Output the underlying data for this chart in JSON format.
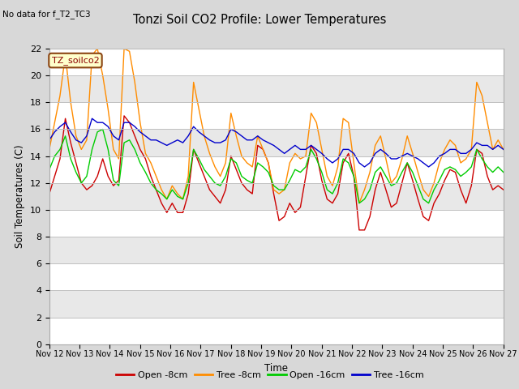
{
  "title": "Tonzi Soil CO2 Profile: Lower Temperatures",
  "no_data_text": "No data for f_T2_TC3",
  "ylabel": "Soil Temperatures (C)",
  "xlabel": "Time",
  "legend_label": "TZ_soilco2",
  "ylim": [
    0,
    22
  ],
  "yticks": [
    0,
    2,
    4,
    6,
    8,
    10,
    12,
    14,
    16,
    18,
    20,
    22
  ],
  "xtick_labels": [
    "Nov 12",
    "Nov 13",
    "Nov 14",
    "Nov 15",
    "Nov 16",
    "Nov 17",
    "Nov 18",
    "Nov 19",
    "Nov 20",
    "Nov 21",
    "Nov 22",
    "Nov 23",
    "Nov 24",
    "Nov 25",
    "Nov 26",
    "Nov 27"
  ],
  "series": {
    "open_8cm": {
      "color": "#cc0000",
      "label": "Open -8cm",
      "values": [
        11.2,
        12.5,
        13.8,
        16.8,
        15.0,
        13.5,
        12.0,
        11.5,
        11.8,
        12.5,
        13.8,
        12.5,
        11.8,
        12.2,
        17.0,
        16.5,
        15.5,
        14.5,
        13.8,
        12.5,
        11.5,
        10.5,
        9.8,
        10.5,
        9.8,
        9.8,
        11.2,
        14.5,
        13.5,
        12.5,
        11.5,
        11.0,
        10.5,
        11.5,
        14.0,
        13.0,
        12.0,
        11.5,
        11.2,
        14.8,
        14.5,
        13.5,
        11.2,
        9.2,
        9.5,
        10.5,
        9.8,
        10.2,
        12.5,
        14.8,
        14.2,
        12.2,
        10.8,
        10.5,
        11.2,
        13.5,
        14.2,
        12.5,
        8.5,
        8.5,
        9.5,
        11.5,
        12.8,
        11.5,
        10.2,
        10.5,
        12.0,
        13.5,
        12.2,
        10.8,
        9.5,
        9.2,
        10.5,
        11.2,
        12.2,
        13.0,
        12.8,
        11.5,
        10.5,
        11.8,
        14.5,
        14.2,
        12.5,
        11.5,
        11.8,
        11.5
      ]
    },
    "tree_8cm": {
      "color": "#ff8c00",
      "label": "Tree -8cm",
      "values": [
        14.5,
        16.5,
        18.5,
        21.5,
        18.0,
        15.5,
        14.5,
        15.2,
        21.5,
        22.0,
        20.0,
        17.5,
        14.5,
        13.8,
        22.0,
        21.8,
        19.5,
        16.5,
        14.2,
        13.5,
        12.5,
        11.5,
        10.8,
        11.8,
        11.2,
        10.8,
        12.5,
        19.5,
        17.5,
        15.5,
        14.2,
        13.2,
        12.5,
        13.5,
        17.2,
        15.5,
        14.0,
        13.5,
        13.2,
        15.5,
        14.5,
        13.5,
        11.5,
        11.2,
        11.5,
        13.5,
        14.2,
        13.8,
        14.0,
        17.2,
        16.5,
        14.5,
        12.5,
        11.8,
        13.2,
        16.8,
        16.5,
        13.5,
        10.5,
        11.5,
        12.8,
        14.8,
        15.5,
        13.8,
        12.0,
        12.5,
        13.8,
        15.5,
        14.2,
        12.8,
        11.5,
        11.0,
        12.0,
        13.5,
        14.5,
        15.2,
        14.8,
        13.5,
        13.8,
        14.5,
        19.5,
        18.5,
        16.5,
        14.5,
        15.2,
        14.5
      ]
    },
    "open_16cm": {
      "color": "#00cc00",
      "label": "Open -16cm",
      "values": [
        13.0,
        14.0,
        14.5,
        15.5,
        13.8,
        12.8,
        12.0,
        12.5,
        14.5,
        15.8,
        16.0,
        14.5,
        12.2,
        11.8,
        15.0,
        15.2,
        14.5,
        13.5,
        12.8,
        12.0,
        11.5,
        11.2,
        10.8,
        11.5,
        11.0,
        10.8,
        12.0,
        14.5,
        13.8,
        13.0,
        12.5,
        12.0,
        11.8,
        12.5,
        13.8,
        13.5,
        12.5,
        12.2,
        12.0,
        13.5,
        13.2,
        12.8,
        11.8,
        11.5,
        11.5,
        12.2,
        13.0,
        12.8,
        13.2,
        14.5,
        13.8,
        12.8,
        11.5,
        11.2,
        12.0,
        13.8,
        13.5,
        12.5,
        10.5,
        10.8,
        11.5,
        12.8,
        13.2,
        12.5,
        11.8,
        12.0,
        12.8,
        13.5,
        12.8,
        11.8,
        10.8,
        10.5,
        11.5,
        12.2,
        13.0,
        13.2,
        13.0,
        12.5,
        12.8,
        13.2,
        14.5,
        13.8,
        13.2,
        12.8,
        13.2,
        12.8
      ]
    },
    "tree_16cm": {
      "color": "#0000cc",
      "label": "Tree -16cm",
      "values": [
        15.2,
        15.8,
        16.2,
        16.5,
        15.8,
        15.2,
        15.0,
        15.5,
        16.8,
        16.5,
        16.5,
        16.2,
        15.5,
        15.2,
        16.5,
        16.5,
        16.2,
        15.8,
        15.5,
        15.2,
        15.2,
        15.0,
        14.8,
        15.0,
        15.2,
        15.0,
        15.5,
        16.2,
        15.8,
        15.5,
        15.2,
        15.0,
        15.0,
        15.2,
        16.0,
        15.8,
        15.5,
        15.2,
        15.2,
        15.5,
        15.2,
        15.0,
        14.8,
        14.5,
        14.2,
        14.5,
        14.8,
        14.5,
        14.5,
        14.8,
        14.5,
        14.2,
        13.8,
        13.5,
        13.8,
        14.5,
        14.5,
        14.2,
        13.5,
        13.2,
        13.5,
        14.2,
        14.5,
        14.2,
        13.8,
        13.8,
        14.0,
        14.2,
        14.0,
        13.8,
        13.5,
        13.2,
        13.5,
        14.0,
        14.2,
        14.5,
        14.5,
        14.2,
        14.2,
        14.5,
        15.0,
        14.8,
        14.8,
        14.5,
        14.8,
        14.5
      ]
    }
  },
  "bg_color": "#d8d8d8",
  "plot_bg_color": "#ffffff",
  "grid_color": "#c0c0c0",
  "band_colors": [
    "#ffffff",
    "#e8e8e8"
  ]
}
